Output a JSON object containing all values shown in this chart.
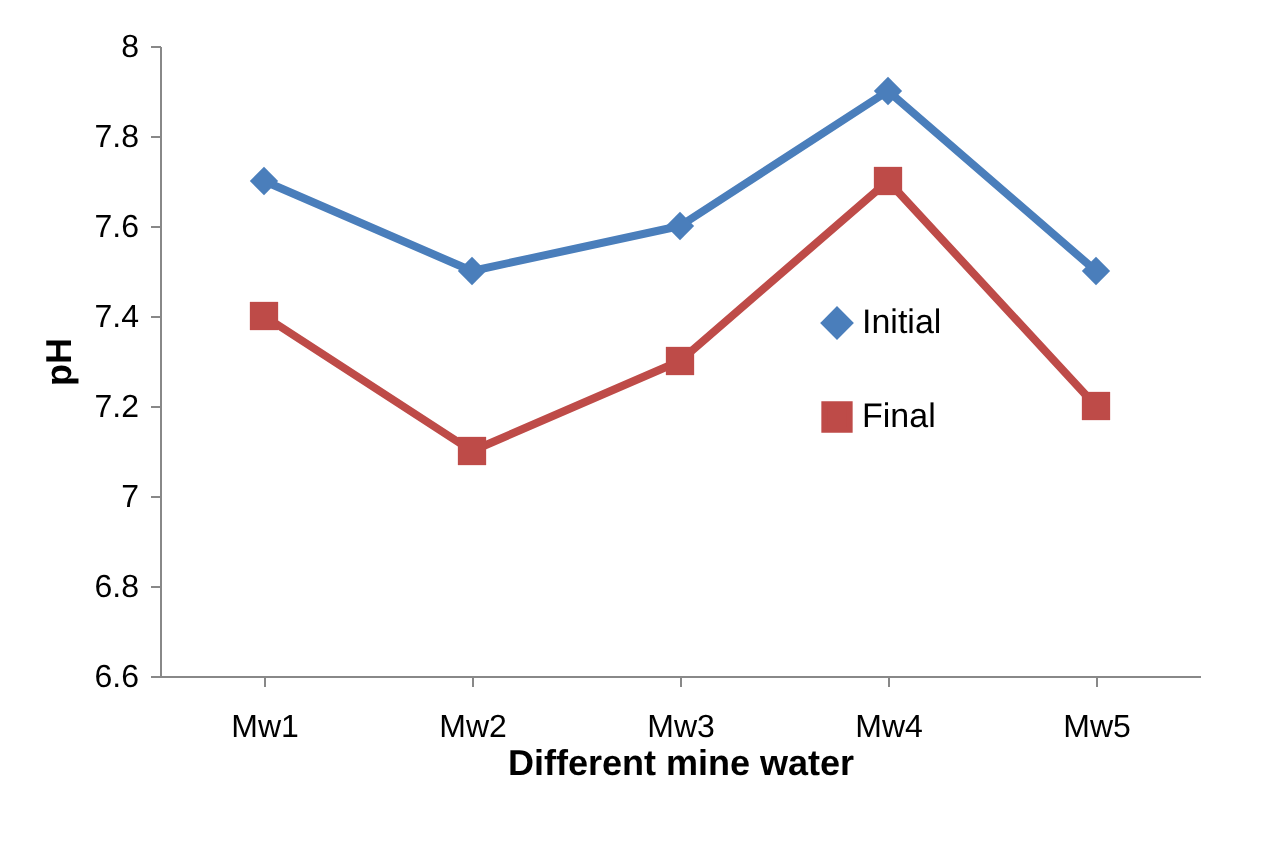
{
  "chart_data": {
    "type": "line",
    "xlabel": "Different mine water",
    "ylabel": "pH",
    "categories": [
      "Mw1",
      "Mw2",
      "Mw3",
      "Mw4",
      "Mw5"
    ],
    "series": [
      {
        "name": "Initial",
        "color": "#4a7ebb",
        "marker": "diamond",
        "values": [
          7.7,
          7.5,
          7.6,
          7.9,
          7.5
        ]
      },
      {
        "name": "Final",
        "color": "#be4b48",
        "marker": "square",
        "values": [
          7.4,
          7.1,
          7.3,
          7.7,
          7.2
        ]
      }
    ],
    "ylim": [
      6.6,
      8
    ],
    "yticks": [
      6.6,
      6.8,
      7,
      7.2,
      7.4,
      7.6,
      7.8,
      8
    ],
    "grid": false,
    "legend": "right"
  }
}
